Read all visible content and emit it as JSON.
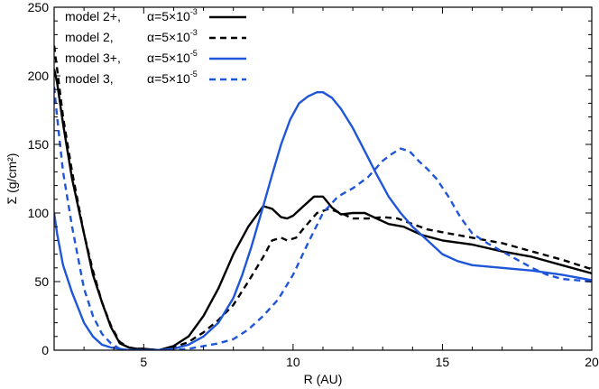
{
  "chart_data": {
    "type": "line",
    "xlabel": "R (AU)",
    "ylabel": "Σ (g/cm²)",
    "xlim": [
      2,
      20
    ],
    "ylim": [
      0,
      250
    ],
    "xticks": [
      5,
      10,
      15,
      20
    ],
    "yticks": [
      0,
      50,
      100,
      150,
      200,
      250
    ],
    "grid": false,
    "legend_position": "top-left",
    "series": [
      {
        "name": "model 2+,",
        "alpha_base": "α=5×10",
        "alpha_exp": "-3",
        "color": "#000000",
        "dash": "solid",
        "x": [
          2.0,
          2.1,
          2.3,
          2.6,
          3.0,
          3.3,
          3.6,
          3.9,
          4.2,
          4.5,
          4.8,
          5.0,
          5.5,
          6.0,
          6.5,
          7.0,
          7.5,
          8.0,
          8.5,
          9.0,
          9.3,
          9.6,
          9.8,
          10.0,
          10.3,
          10.7,
          11.0,
          11.3,
          11.6,
          12.0,
          12.4,
          12.8,
          13.2,
          13.7,
          14.3,
          15.0,
          16.0,
          17.0,
          18.0,
          19.0,
          20.0
        ],
        "y": [
          205,
          195,
          165,
          125,
          85,
          55,
          35,
          17,
          5,
          2,
          1,
          1,
          0,
          3,
          10,
          25,
          45,
          70,
          90,
          105,
          103,
          97,
          96,
          98,
          104,
          112,
          112,
          104,
          99,
          100,
          100,
          96,
          92,
          90,
          84,
          80,
          77,
          72,
          68,
          62,
          56
        ]
      },
      {
        "name": "model 2,",
        "alpha_base": "α=5×10",
        "alpha_exp": "-3",
        "color": "#000000",
        "dash": "dashed",
        "x": [
          2.0,
          2.1,
          2.3,
          2.6,
          3.0,
          3.3,
          3.6,
          3.9,
          4.2,
          4.5,
          4.8,
          5.0,
          5.5,
          6.0,
          6.5,
          7.0,
          7.5,
          8.0,
          8.5,
          9.0,
          9.3,
          9.6,
          9.8,
          10.1,
          10.4,
          10.8,
          11.2,
          11.6,
          12.0,
          12.5,
          13.0,
          13.5,
          14.0,
          14.5,
          15.0,
          16.0,
          17.0,
          18.0,
          19.0,
          20.0
        ],
        "y": [
          222,
          205,
          170,
          130,
          85,
          58,
          35,
          18,
          6,
          2,
          1,
          1,
          0,
          2,
          6,
          13,
          22,
          33,
          50,
          68,
          80,
          82,
          80,
          82,
          90,
          100,
          103,
          100,
          96,
          96,
          97,
          96,
          92,
          88,
          86,
          82,
          78,
          72,
          66,
          59
        ]
      },
      {
        "name": "model 3+,",
        "alpha_base": "α=5×10",
        "alpha_exp": "-5",
        "color": "#1f56d9",
        "dash": "solid",
        "x": [
          2.0,
          2.1,
          2.3,
          2.6,
          3.0,
          3.3,
          3.6,
          3.9,
          4.2,
          4.5,
          4.8,
          5.0,
          5.5,
          6.0,
          6.5,
          7.0,
          7.5,
          8.0,
          8.3,
          8.6,
          9.0,
          9.3,
          9.6,
          9.9,
          10.2,
          10.5,
          10.8,
          11.0,
          11.3,
          11.6,
          12.0,
          12.4,
          12.8,
          13.2,
          13.6,
          14.0,
          14.5,
          15.0,
          15.5,
          16.0,
          17.0,
          18.0,
          19.0,
          20.0
        ],
        "y": [
          100,
          85,
          62,
          42,
          20,
          10,
          4,
          2,
          1,
          0,
          0,
          0,
          0,
          1,
          4,
          10,
          20,
          38,
          55,
          75,
          105,
          128,
          150,
          168,
          180,
          185,
          188,
          188,
          184,
          176,
          162,
          145,
          128,
          112,
          100,
          90,
          80,
          70,
          65,
          62,
          60,
          58,
          55,
          51
        ]
      },
      {
        "name": "model 3,",
        "alpha_base": "α=5×10",
        "alpha_exp": "-5",
        "color": "#1f56d9",
        "dash": "dashed",
        "x": [
          2.0,
          2.1,
          2.3,
          2.6,
          3.0,
          3.3,
          3.6,
          3.9,
          4.2,
          4.5,
          4.8,
          5.0,
          5.5,
          6.0,
          6.5,
          7.0,
          7.5,
          8.0,
          8.5,
          9.0,
          9.5,
          10.0,
          10.5,
          11.0,
          11.5,
          12.0,
          12.5,
          13.0,
          13.3,
          13.6,
          13.9,
          14.2,
          14.5,
          14.8,
          15.2,
          15.6,
          16.0,
          16.5,
          17.0,
          17.5,
          18.0,
          18.5,
          19.0,
          20.0
        ],
        "y": [
          192,
          170,
          130,
          90,
          45,
          25,
          12,
          5,
          1,
          0,
          0,
          0,
          0,
          0,
          1,
          3,
          5,
          8,
          15,
          25,
          37,
          55,
          78,
          100,
          112,
          118,
          126,
          138,
          143,
          147,
          145,
          138,
          132,
          125,
          112,
          97,
          85,
          78,
          72,
          66,
          60,
          55,
          52,
          50
        ]
      }
    ]
  }
}
